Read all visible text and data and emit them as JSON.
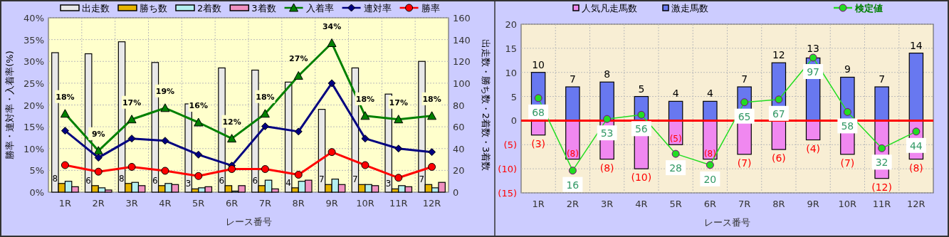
{
  "chart_data": [
    {
      "type": "bar",
      "xlabel": "レース番号",
      "ylabel": "勝率・連対率・入着率(%)",
      "y2label": "出走数・勝ち数・2着数・3着数",
      "categories": [
        "1R",
        "2R",
        "3R",
        "4R",
        "5R",
        "6R",
        "7R",
        "8R",
        "9R",
        "10R",
        "11R",
        "12R"
      ],
      "ylim": [
        0,
        40
      ],
      "yticks": [
        {
          "value": 0,
          "label": "0%"
        },
        {
          "value": 5,
          "label": "5%"
        },
        {
          "value": 10,
          "label": "10%"
        },
        {
          "value": 15,
          "label": "15%"
        },
        {
          "value": 20,
          "label": "20%"
        },
        {
          "value": 25,
          "label": "25%"
        },
        {
          "value": 30,
          "label": "30%"
        },
        {
          "value": 35,
          "label": "35%"
        },
        {
          "value": 40,
          "label": "40%"
        }
      ],
      "y2lim": [
        0,
        160
      ],
      "y2ticks": [
        0,
        20,
        40,
        60,
        80,
        100,
        120,
        140,
        160
      ],
      "grid": true,
      "legend": "top",
      "series": [
        {
          "name": "出走数",
          "axis": "y2",
          "color": "#e8e8e8",
          "values": [
            128,
            127,
            138,
            119,
            81,
            114,
            112,
            101,
            76,
            114,
            90,
            120
          ]
        },
        {
          "name": "勝ち数",
          "axis": "y2",
          "color": "#e6b400",
          "values": [
            8,
            6,
            8,
            6,
            3,
            6,
            6,
            4,
            7,
            7,
            3,
            7
          ],
          "value_labels": [
            "8",
            "6",
            "8",
            "6",
            "3",
            "6",
            "6",
            "4",
            "7",
            "7",
            "3",
            "7"
          ]
        },
        {
          "name": "2着数",
          "axis": "y2",
          "color": "#b4f0f0",
          "values": [
            10,
            4,
            9,
            8,
            4,
            1,
            11,
            10,
            12,
            7,
            6,
            4
          ]
        },
        {
          "name": "3着数",
          "axis": "y2",
          "color": "#f090c0",
          "values": [
            5,
            2,
            6,
            7,
            5,
            6,
            3,
            11,
            7,
            6,
            5,
            9
          ]
        },
        {
          "name": "入着率",
          "type": "line",
          "color": "#008000",
          "marker": "triangle",
          "values": [
            18,
            9.5,
            16.7,
            19.3,
            16,
            12.3,
            18,
            26.7,
            34.2,
            17.5,
            16.7,
            17.5
          ],
          "value_labels": [
            "18%",
            "9%",
            "17%",
            "19%",
            "16%",
            "12%",
            "18%",
            "27%",
            "34%",
            "18%",
            "17%",
            "18%"
          ]
        },
        {
          "name": "連対率",
          "type": "line",
          "color": "#000080",
          "marker": "diamond",
          "values": [
            14.1,
            7.9,
            12.3,
            11.8,
            8.6,
            6.1,
            15.1,
            13.9,
            25,
            12.3,
            10,
            9.2
          ]
        },
        {
          "name": "勝率",
          "type": "line",
          "color": "#ff0000",
          "marker": "circle",
          "values": [
            6.2,
            4.7,
            5.8,
            4.9,
            3.7,
            5.3,
            5.3,
            4,
            9.2,
            6.2,
            3.3,
            5.8
          ]
        }
      ]
    },
    {
      "type": "bar",
      "xlabel": "レース番号",
      "stacked": true,
      "categories": [
        "1R",
        "2R",
        "3R",
        "4R",
        "5R",
        "6R",
        "7R",
        "8R",
        "9R",
        "10R",
        "11R",
        "12R"
      ],
      "ylim": [
        -15,
        20
      ],
      "yticks": [
        {
          "value": -15,
          "label": "(15)"
        },
        {
          "value": -10,
          "label": "(10)"
        },
        {
          "value": -5,
          "label": "(5)"
        },
        0,
        5,
        10,
        15,
        20
      ],
      "grid": true,
      "legend": "top",
      "y2lim": [
        0,
        121
      ],
      "ref_lines": [
        {
          "axis": "y",
          "value": 0,
          "color": "#ff0000"
        }
      ],
      "series": [
        {
          "name": "人気凡走馬数",
          "color": "#f088f0",
          "values": [
            -3,
            -8,
            -8,
            -10,
            -5,
            -8,
            -7,
            -6,
            -4,
            -7,
            -12,
            -8
          ],
          "value_labels": [
            "(3)",
            "(8)",
            "(8)",
            "(10)",
            "(5)",
            "(8)",
            "(7)",
            "(6)",
            "(4)",
            "(7)",
            "(12)",
            "(8)"
          ]
        },
        {
          "name": "激走馬数",
          "color": "#6878f0",
          "values": [
            10,
            7,
            8,
            5,
            4,
            4,
            7,
            12,
            13,
            9,
            7,
            14
          ],
          "value_labels": [
            "10",
            "7",
            "8",
            "5",
            "4",
            "4",
            "7",
            "12",
            "13",
            "9",
            "7",
            "14"
          ]
        },
        {
          "name": "検定値",
          "type": "line",
          "axis": "y2",
          "color": "#22dd22",
          "marker": "circle",
          "values": [
            68,
            16,
            53,
            56,
            28,
            20,
            65,
            67,
            97,
            58,
            32,
            44
          ],
          "value_labels": [
            "68",
            "16",
            "53",
            "56",
            "28",
            "20",
            "65",
            "67",
            "97",
            "58",
            "32",
            "44"
          ]
        }
      ]
    }
  ]
}
